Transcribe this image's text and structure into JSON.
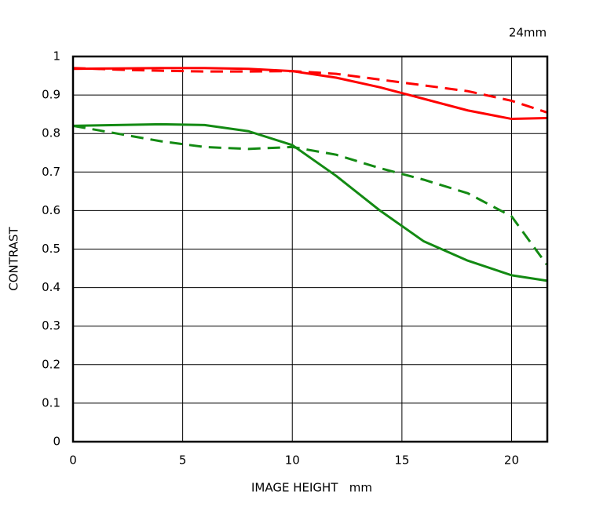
{
  "chart_data": {
    "type": "line",
    "annotation": "24mm",
    "y_label": "CONTRAST",
    "x_label": "IMAGE HEIGHT   mm",
    "x": [
      0,
      2,
      4,
      6,
      8,
      10,
      12,
      14,
      16,
      18,
      20,
      21.6
    ],
    "xlim": [
      0,
      21.63
    ],
    "xticks": [
      0,
      5,
      10,
      15,
      20
    ],
    "ylim": [
      0,
      1
    ],
    "yticks": [
      0,
      0.1,
      0.2,
      0.3,
      0.4,
      0.5,
      0.6,
      0.7,
      0.8,
      0.9,
      1
    ],
    "grid": true,
    "series": [
      {
        "color": "#ff0000",
        "dashed": false,
        "values": [
          0.968,
          0.969,
          0.97,
          0.97,
          0.968,
          0.962,
          0.945,
          0.92,
          0.89,
          0.86,
          0.838,
          0.84
        ]
      },
      {
        "color": "#ff0000",
        "dashed": true,
        "values": [
          0.97,
          0.966,
          0.963,
          0.961,
          0.961,
          0.962,
          0.955,
          0.94,
          0.925,
          0.91,
          0.885,
          0.855
        ]
      },
      {
        "color": "#138a13",
        "dashed": false,
        "values": [
          0.82,
          0.822,
          0.824,
          0.822,
          0.806,
          0.77,
          0.69,
          0.6,
          0.52,
          0.47,
          0.432,
          0.418
        ]
      },
      {
        "color": "#138a13",
        "dashed": true,
        "values": [
          0.82,
          0.8,
          0.78,
          0.765,
          0.76,
          0.765,
          0.745,
          0.71,
          0.68,
          0.645,
          0.585,
          0.46
        ]
      }
    ]
  }
}
